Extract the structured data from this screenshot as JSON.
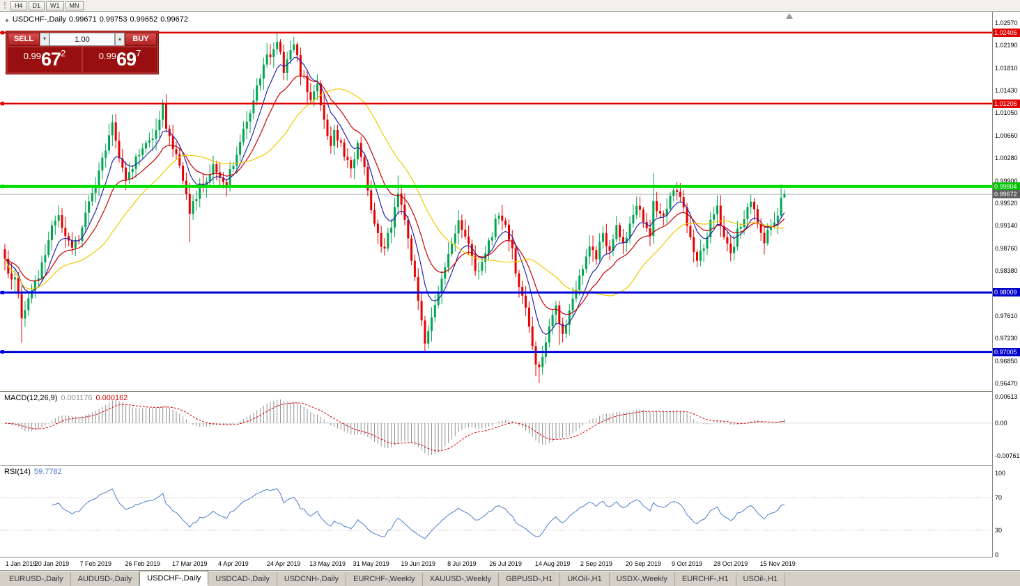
{
  "toolbar": {
    "periods": [
      "H4",
      "D1",
      "W1",
      "MN"
    ]
  },
  "chart": {
    "title": {
      "symbol": "USDCHF-,Daily",
      "open": "0.99671",
      "high": "0.99753",
      "low": "0.99652",
      "close": "0.99672"
    },
    "one_click": {
      "sell_label": "SELL",
      "buy_label": "BUY",
      "volume": "1.00",
      "sell_quote": {
        "prefix": "0.99",
        "big": "67",
        "sup": "2"
      },
      "buy_quote": {
        "prefix": "0.99",
        "big": "69",
        "sup": "7"
      }
    }
  },
  "price_scale": {
    "ticks": [
      "1.02570",
      "1.02190",
      "1.01810",
      "1.01430",
      "1.01050",
      "1.00660",
      "1.00280",
      "0.99900",
      "0.99520",
      "0.99140",
      "0.98760",
      "0.98380",
      "0.97610",
      "0.97230",
      "0.96850",
      "0.96470"
    ]
  },
  "macd_panel": {
    "title": "MACD(12,26,9)",
    "value_main": "0.001176",
    "value_signal": "0.000162",
    "scale_labels": [
      {
        "text": "0.00613",
        "v": 0.00613
      },
      {
        "text": "0.00",
        "v": 0
      },
      {
        "text": "-0.00761",
        "v": -0.00761
      }
    ]
  },
  "rsi_panel": {
    "title": "RSI(14)",
    "value": "59.7782",
    "scale_labels": [
      {
        "text": "100",
        "v": 100
      },
      {
        "text": "70",
        "v": 70
      },
      {
        "text": "30",
        "v": 30
      },
      {
        "text": "0",
        "v": 0
      }
    ]
  },
  "date_axis": {
    "labels": [
      {
        "text": "1 Jan 2019",
        "bar": 0
      },
      {
        "text": "20 Jan 2019",
        "bar": 14
      },
      {
        "text": "7 Feb 2019",
        "bar": 27
      },
      {
        "text": "26 Feb 2019",
        "bar": 41
      },
      {
        "text": "17 Mar 2019",
        "bar": 55
      },
      {
        "text": "4 Apr 2019",
        "bar": 68
      },
      {
        "text": "24 Apr 2019",
        "bar": 83
      },
      {
        "text": "13 May 2019",
        "bar": 96
      },
      {
        "text": "31 May 2019",
        "bar": 109
      },
      {
        "text": "19 Jun 2019",
        "bar": 123
      },
      {
        "text": "8 Jul 2019",
        "bar": 136
      },
      {
        "text": "26 Jul 2019",
        "bar": 149
      },
      {
        "text": "14 Aug 2019",
        "bar": 163
      },
      {
        "text": "2 Sep 2019",
        "bar": 176
      },
      {
        "text": "20 Sep 2019",
        "bar": 190
      },
      {
        "text": "9 Oct 2019",
        "bar": 203
      },
      {
        "text": "28 Oct 2019",
        "bar": 216
      },
      {
        "text": "15 Nov 2019",
        "bar": 230
      }
    ]
  },
  "tabs": {
    "items": [
      "EURUSD-,Daily",
      "AUDUSD-,Daily",
      "USDCHF-,Daily",
      "USDCAD-,Daily",
      "USDCNH-,Daily",
      "EURCHF-,Weekly",
      "XAUUSD-,Weekly",
      "GBPUSD-,H1",
      "UKOil-,H1",
      "USDX-,Weekly",
      "EURCHF-,H1",
      "USOil-,H1"
    ],
    "active_index": 2
  },
  "chart_data": {
    "type": "candlestick",
    "symbol": "USDCHF",
    "timeframe": "Daily",
    "bar_count": 233,
    "price_range": {
      "top": 1.0257,
      "bottom": 0.9647
    },
    "last_price": 0.99672,
    "last_price_label": "0.99672",
    "current_bar": {
      "open": 0.99671,
      "high": 0.99753,
      "low": 0.99652,
      "close": 0.99672
    },
    "hlines": [
      {
        "price": 1.02406,
        "label": "1.02406",
        "color": "#e00000",
        "width": 2.5,
        "label_bg": "#e00000"
      },
      {
        "price": 1.01206,
        "label": "1.01206",
        "color": "#e00000",
        "width": 2.5,
        "label_bg": "#e00000"
      },
      {
        "price": 0.99804,
        "label": "0.99804",
        "color": "#00dd00",
        "width": 4,
        "label_bg": "#00c000"
      },
      {
        "price": 0.98009,
        "label": "0.98009",
        "color": "#0000dd",
        "width": 3,
        "label_bg": "#0000cc"
      },
      {
        "price": 0.97005,
        "label": "0.97005",
        "color": "#0000dd",
        "width": 3,
        "label_bg": "#0000cc"
      }
    ],
    "close_path": [
      [
        0,
        0.9858
      ],
      [
        1,
        0.984
      ],
      [
        2,
        0.9822
      ],
      [
        3,
        0.9832
      ],
      [
        4,
        0.9796
      ],
      [
        5,
        0.9762
      ],
      [
        6,
        0.9778
      ],
      [
        8,
        0.9802
      ],
      [
        10,
        0.9832
      ],
      [
        12,
        0.9868
      ],
      [
        14,
        0.9912
      ],
      [
        16,
        0.9926
      ],
      [
        18,
        0.9902
      ],
      [
        20,
        0.988
      ],
      [
        22,
        0.9896
      ],
      [
        24,
        0.9932
      ],
      [
        26,
        0.9966
      ],
      [
        28,
        1.0002
      ],
      [
        30,
        1.0042
      ],
      [
        32,
        1.0084
      ],
      [
        33,
        1.0058
      ],
      [
        34,
        1.0034
      ],
      [
        36,
        0.9998
      ],
      [
        38,
        1.0016
      ],
      [
        40,
        1.0032
      ],
      [
        42,
        1.0048
      ],
      [
        44,
        1.0066
      ],
      [
        46,
        1.0098
      ],
      [
        47,
        1.0118
      ],
      [
        48,
        1.008
      ],
      [
        50,
        1.0044
      ],
      [
        52,
        1.0012
      ],
      [
        54,
        0.9966
      ],
      [
        55,
        0.993
      ],
      [
        56,
        0.9956
      ],
      [
        58,
        0.9978
      ],
      [
        60,
        0.9996
      ],
      [
        62,
        1.0012
      ],
      [
        64,
        1.0
      ],
      [
        66,
        0.9986
      ],
      [
        68,
        1.0018
      ],
      [
        70,
        1.0056
      ],
      [
        72,
        1.0092
      ],
      [
        74,
        1.0126
      ],
      [
        76,
        1.0162
      ],
      [
        78,
        1.0196
      ],
      [
        80,
        1.0218
      ],
      [
        81,
        1.0228
      ],
      [
        82,
        1.0204
      ],
      [
        83,
        1.018
      ],
      [
        85,
        1.0212
      ],
      [
        86,
        1.0218
      ],
      [
        87,
        1.0198
      ],
      [
        88,
        1.0174
      ],
      [
        90,
        1.0148
      ],
      [
        91,
        1.0128
      ],
      [
        93,
        1.0152
      ],
      [
        95,
        1.0098
      ],
      [
        96,
        1.0072
      ],
      [
        97,
        1.0056
      ],
      [
        98,
        1.0078
      ],
      [
        100,
        1.0048
      ],
      [
        102,
        1.002
      ],
      [
        103,
        1.0008
      ],
      [
        104,
        1.003
      ],
      [
        105,
        1.0048
      ],
      [
        107,
        1.0006
      ],
      [
        108,
        0.9978
      ],
      [
        109,
        0.9946
      ],
      [
        110,
        0.9916
      ],
      [
        111,
        0.9896
      ],
      [
        113,
        0.9868
      ],
      [
        114,
        0.9896
      ],
      [
        115,
        0.9918
      ],
      [
        116,
        0.9946
      ],
      [
        117,
        0.9974
      ],
      [
        118,
        0.995
      ],
      [
        119,
        0.9928
      ],
      [
        120,
        0.989
      ],
      [
        121,
        0.9852
      ],
      [
        122,
        0.982
      ],
      [
        123,
        0.9788
      ],
      [
        124,
        0.9752
      ],
      [
        125,
        0.9722
      ],
      [
        126,
        0.974
      ],
      [
        127,
        0.9762
      ],
      [
        128,
        0.9782
      ],
      [
        129,
        0.9802
      ],
      [
        130,
        0.9822
      ],
      [
        131,
        0.9842
      ],
      [
        132,
        0.9862
      ],
      [
        133,
        0.9882
      ],
      [
        134,
        0.9902
      ],
      [
        135,
        0.9916
      ],
      [
        136,
        0.9906
      ],
      [
        137,
        0.9894
      ],
      [
        138,
        0.9878
      ],
      [
        139,
        0.9858
      ],
      [
        140,
        0.9842
      ],
      [
        141,
        0.983
      ],
      [
        142,
        0.985
      ],
      [
        143,
        0.9868
      ],
      [
        144,
        0.9886
      ],
      [
        145,
        0.9902
      ],
      [
        146,
        0.9918
      ],
      [
        147,
        0.9932
      ],
      [
        148,
        0.9924
      ],
      [
        149,
        0.9912
      ],
      [
        150,
        0.989
      ],
      [
        151,
        0.9868
      ],
      [
        152,
        0.984
      ],
      [
        153,
        0.9812
      ],
      [
        154,
        0.979
      ],
      [
        155,
        0.9768
      ],
      [
        156,
        0.9742
      ],
      [
        157,
        0.9712
      ],
      [
        158,
        0.9682
      ],
      [
        159,
        0.9672
      ],
      [
        160,
        0.9696
      ],
      [
        161,
        0.9718
      ],
      [
        162,
        0.974
      ],
      [
        163,
        0.976
      ],
      [
        164,
        0.9778
      ],
      [
        165,
        0.9752
      ],
      [
        166,
        0.973
      ],
      [
        167,
        0.9752
      ],
      [
        168,
        0.9772
      ],
      [
        169,
        0.979
      ],
      [
        170,
        0.9808
      ],
      [
        171,
        0.9826
      ],
      [
        172,
        0.9846
      ],
      [
        173,
        0.9862
      ],
      [
        174,
        0.9878
      ],
      [
        175,
        0.9868
      ],
      [
        176,
        0.9858
      ],
      [
        177,
        0.988
      ],
      [
        178,
        0.9898
      ],
      [
        179,
        0.9886
      ],
      [
        180,
        0.987
      ],
      [
        181,
        0.989
      ],
      [
        182,
        0.9908
      ],
      [
        183,
        0.9896
      ],
      [
        184,
        0.9882
      ],
      [
        185,
        0.99
      ],
      [
        186,
        0.9918
      ],
      [
        187,
        0.9934
      ],
      [
        188,
        0.9948
      ],
      [
        189,
        0.9938
      ],
      [
        190,
        0.9928
      ],
      [
        191,
        0.9912
      ],
      [
        192,
        0.9902
      ],
      [
        193,
        0.9958
      ],
      [
        194,
        0.994
      ],
      [
        195,
        0.9932
      ],
      [
        196,
        0.9924
      ],
      [
        197,
        0.9942
      ],
      [
        198,
        0.9958
      ],
      [
        199,
        0.9968
      ],
      [
        200,
        0.9976
      ],
      [
        201,
        0.9958
      ],
      [
        202,
        0.994
      ],
      [
        203,
        0.9916
      ],
      [
        204,
        0.989
      ],
      [
        205,
        0.9868
      ],
      [
        206,
        0.985
      ],
      [
        207,
        0.9866
      ],
      [
        208,
        0.9882
      ],
      [
        209,
        0.9902
      ],
      [
        210,
        0.992
      ],
      [
        211,
        0.9932
      ],
      [
        212,
        0.994
      ],
      [
        213,
        0.992
      ],
      [
        214,
        0.9902
      ],
      [
        215,
        0.9886
      ],
      [
        216,
        0.987
      ],
      [
        217,
        0.9886
      ],
      [
        218,
        0.9902
      ],
      [
        219,
        0.9916
      ],
      [
        220,
        0.993
      ],
      [
        221,
        0.994
      ],
      [
        222,
        0.995
      ],
      [
        223,
        0.9936
      ],
      [
        224,
        0.992
      ],
      [
        225,
        0.9906
      ],
      [
        226,
        0.9892
      ],
      [
        227,
        0.99
      ],
      [
        228,
        0.991
      ],
      [
        229,
        0.992
      ],
      [
        230,
        0.9926
      ],
      [
        231,
        0.9966
      ],
      [
        232,
        0.99672
      ]
    ],
    "wicks": [
      {
        "i": 5,
        "low": 0.9716
      },
      {
        "i": 47,
        "high": 1.0128
      },
      {
        "i": 55,
        "low": 0.9886
      },
      {
        "i": 81,
        "high": 1.024
      },
      {
        "i": 117,
        "high": 0.9999
      },
      {
        "i": 125,
        "low": 0.97
      },
      {
        "i": 159,
        "low": 0.9648
      },
      {
        "i": 165,
        "low": 0.9712
      },
      {
        "i": 193,
        "high": 1.0002
      },
      {
        "i": 201,
        "high": 0.9986
      },
      {
        "i": 231,
        "high": 0.9984
      },
      {
        "i": 232,
        "high": 0.99753,
        "low": 0.99652
      }
    ],
    "moving_averages": [
      {
        "type": "ema",
        "period": 8,
        "color": "#2525aa"
      },
      {
        "type": "ema",
        "period": 17,
        "color": "#c80000"
      },
      {
        "type": "sma",
        "period": 30,
        "color": "#f0c800"
      }
    ],
    "indicators": {
      "macd": {
        "fast": 12,
        "slow": 26,
        "signal_period": 9,
        "value_main": 0.001176,
        "value_signal": 0.000162
      },
      "rsi": {
        "period": 14,
        "value": 59.7782,
        "levels": [
          70,
          30
        ]
      }
    },
    "colors": {
      "up": "#00a651",
      "down": "#e60000",
      "last_line": "#b8b8b8",
      "macd_hist": "#909090",
      "macd_signal": "#d40000",
      "rsi_line": "#4b7dc8",
      "rsi_levels": "#b0b0b0"
    }
  }
}
